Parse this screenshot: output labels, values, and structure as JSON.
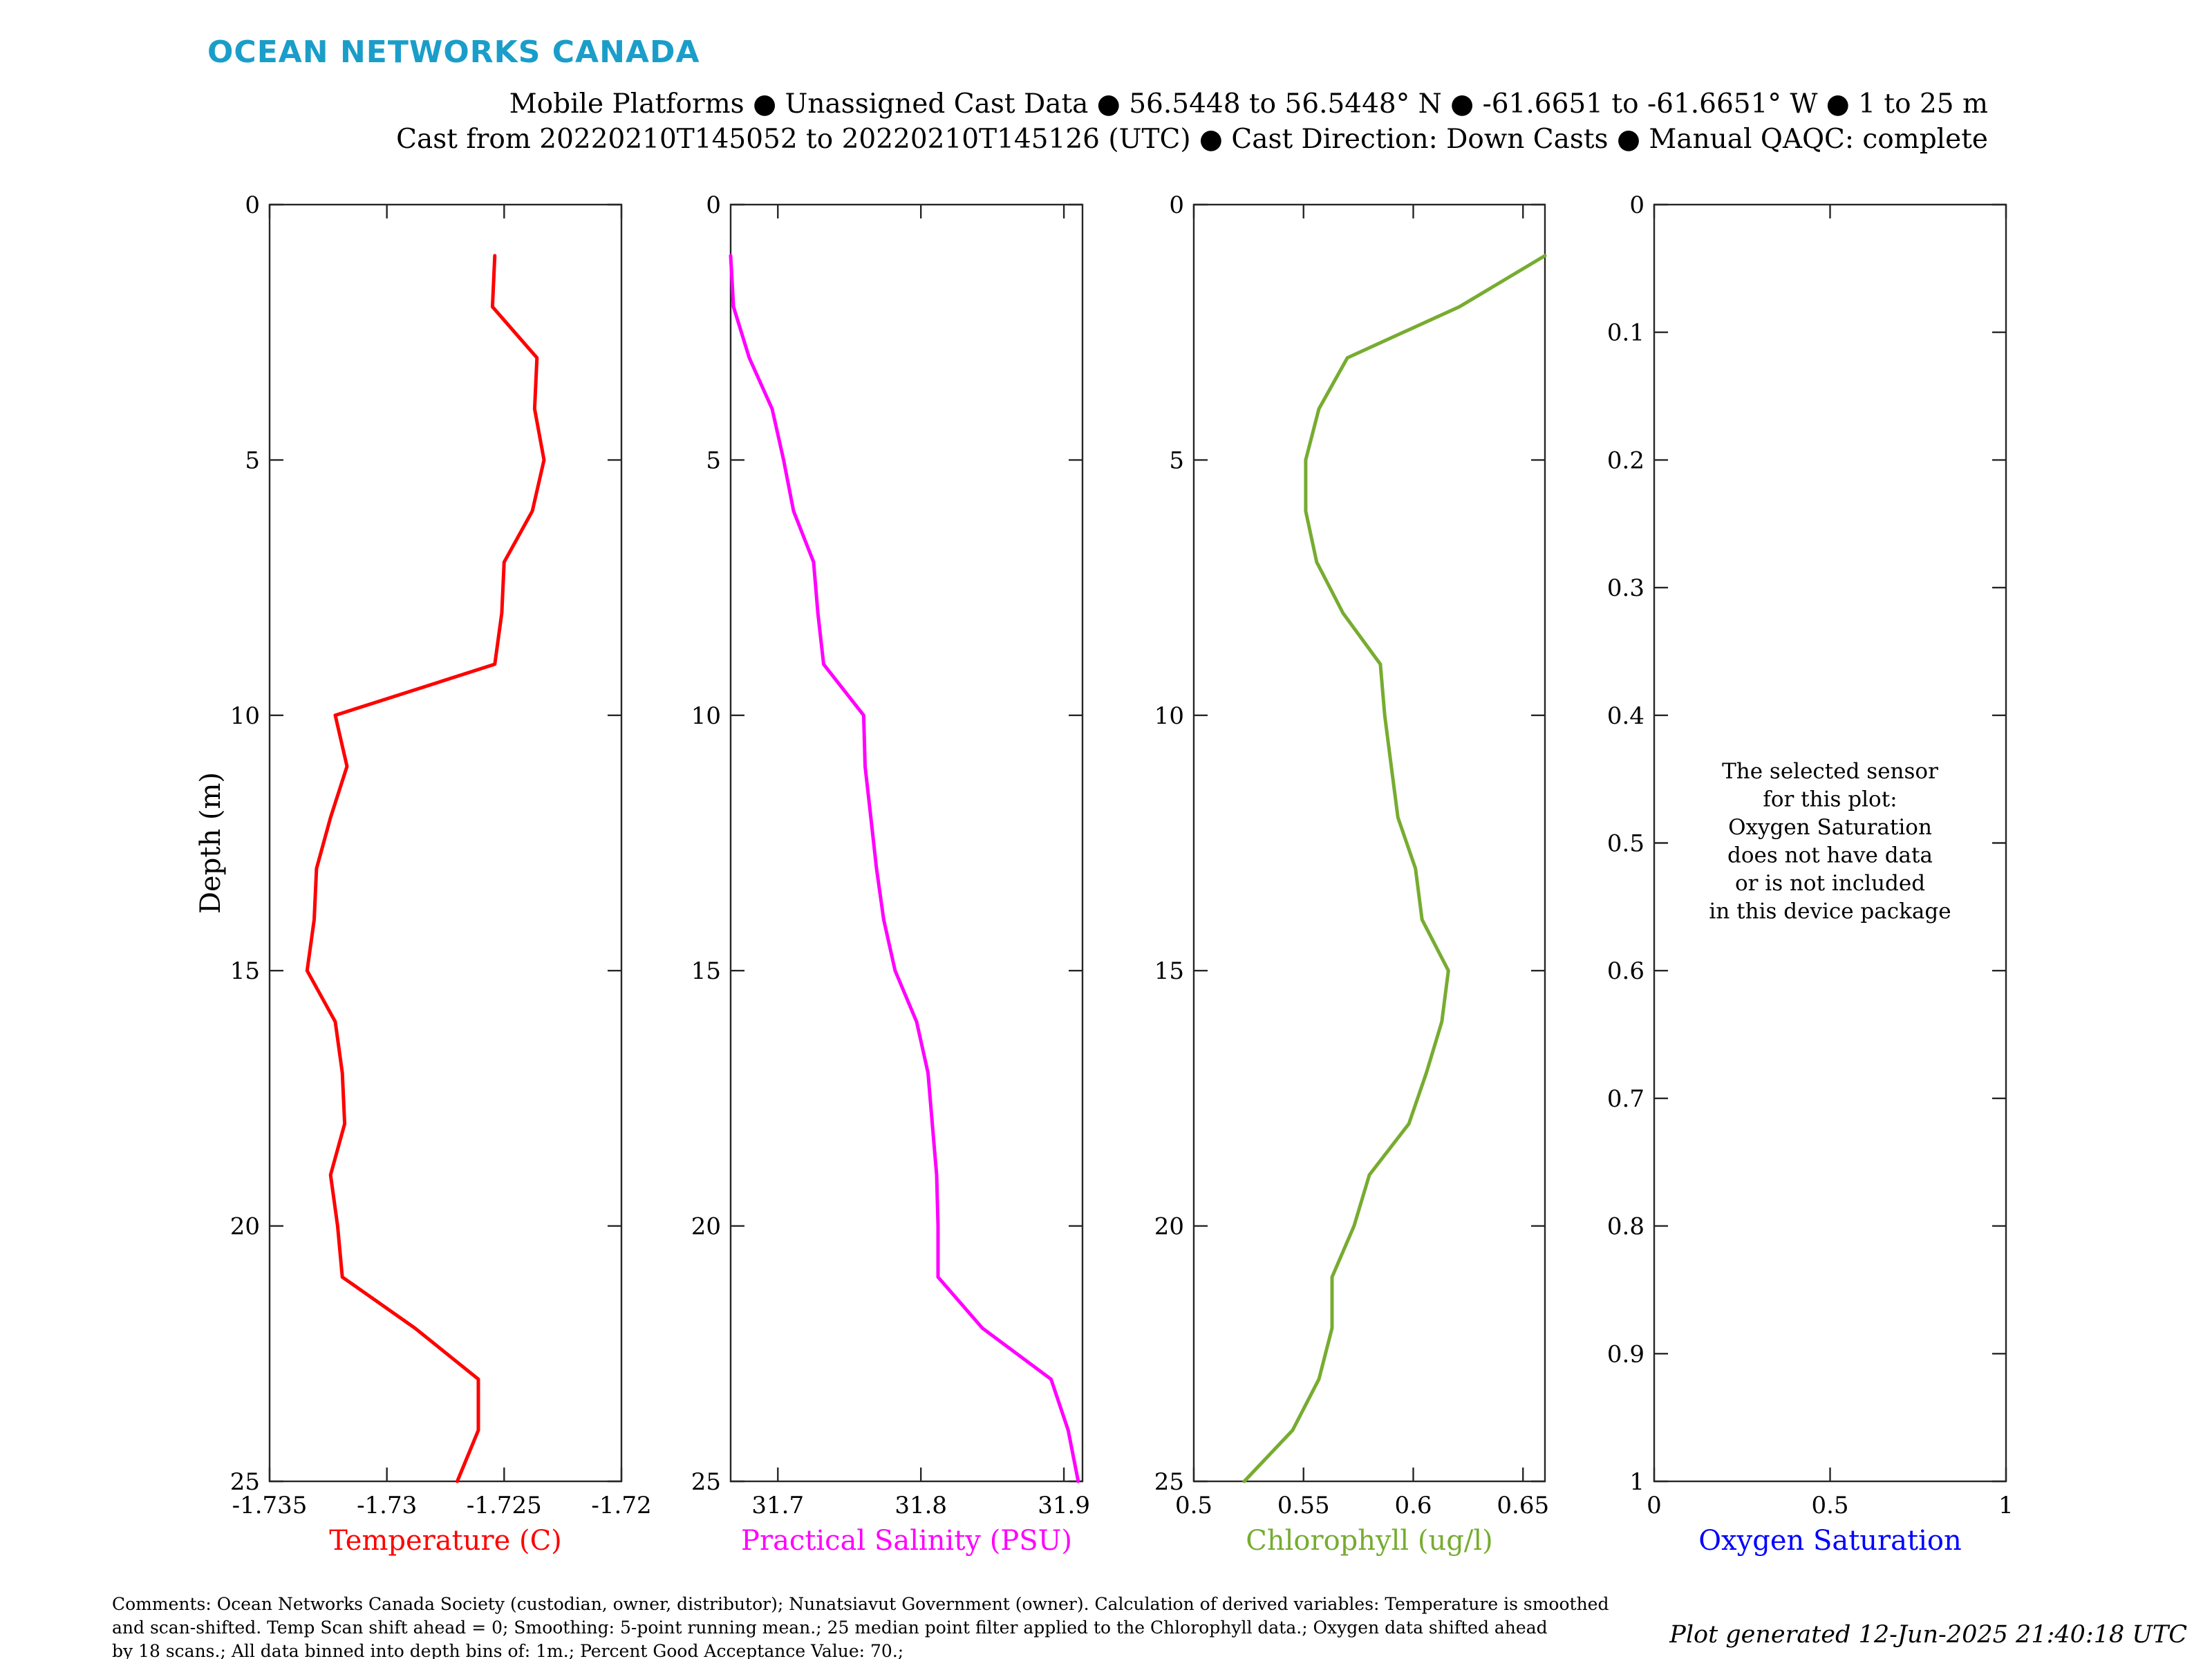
{
  "brand": {
    "name": "OCEAN NETWORKS CANADA",
    "color": "#1a9ec9"
  },
  "header": {
    "line1": "Mobile Platforms ● Unassigned Cast Data ● 56.5448 to 56.5448° N ● -61.6651 to -61.6651° W ● 1 to 25 m",
    "line2": "Cast from 20220210T145052 to 20220210T145126 (UTC) ● Cast Direction: Down Casts ● Manual QAQC: complete"
  },
  "footer": {
    "comments": [
      "Comments: Ocean Networks Canada Society (custodian, owner, distributor); Nunatsiavut Government (owner). Calculation of derived variables: Temperature is smoothed",
      "and scan-shifted. Temp Scan shift ahead = 0; Smoothing: 5-point running mean.; 25 median point filter applied to the Chlorophyll data.; Oxygen data shifted ahead",
      "by 18 scans.; All data binned into depth bins of: 1m.; Percent Good Acceptance Value: 70.;"
    ],
    "generated": "Plot generated 12-Jun-2025 21:40:18 UTC"
  },
  "chart_data": [
    {
      "type": "line",
      "ylabel": "Depth (m)",
      "xlabel": "Temperature (C)",
      "color": "#ff0000",
      "xlim": [
        -1.735,
        -1.72
      ],
      "ylim": [
        0,
        25
      ],
      "y_reversed": true,
      "xticks": [
        -1.735,
        -1.73,
        -1.725,
        -1.72
      ],
      "xtick_labels": [
        "-1.735",
        "-1.73",
        "-1.725",
        "-1.72"
      ],
      "yticks": [
        0,
        5,
        10,
        15,
        20,
        25
      ],
      "ytick_labels": [
        "0",
        "5",
        "10",
        "15",
        "20",
        "25"
      ],
      "series": [
        {
          "depth": [
            1,
            2,
            3,
            4,
            5,
            6,
            7,
            8,
            9,
            10,
            11,
            12,
            13,
            14,
            15,
            16,
            17,
            18,
            19,
            20,
            21,
            22,
            23,
            24,
            25
          ],
          "values": [
            -1.7254,
            -1.7255,
            -1.7236,
            -1.7237,
            -1.7233,
            -1.7238,
            -1.725,
            -1.7251,
            -1.7254,
            -1.7322,
            -1.7317,
            -1.7324,
            -1.733,
            -1.7331,
            -1.7334,
            -1.7322,
            -1.7319,
            -1.7318,
            -1.7324,
            -1.7321,
            -1.7319,
            -1.7288,
            -1.7261,
            -1.7261,
            -1.727
          ]
        }
      ],
      "grid": false
    },
    {
      "type": "line",
      "xlabel": "Practical Salinity (PSU)",
      "color": "#ff00ff",
      "xlim": [
        31.667,
        31.913
      ],
      "ylim": [
        0,
        25
      ],
      "y_reversed": true,
      "xticks": [
        31.7,
        31.8,
        31.9
      ],
      "xtick_labels": [
        "31.7",
        "31.8",
        "31.9"
      ],
      "yticks": [
        0,
        5,
        10,
        15,
        20,
        25
      ],
      "ytick_labels": [
        "0",
        "5",
        "10",
        "15",
        "20",
        "25"
      ],
      "series": [
        {
          "depth": [
            1,
            2,
            3,
            4,
            5,
            6,
            7,
            8,
            9,
            10,
            11,
            12,
            13,
            14,
            15,
            16,
            17,
            18,
            19,
            20,
            21,
            22,
            23,
            24,
            25
          ],
          "values": [
            31.667,
            31.669,
            31.68,
            31.696,
            31.704,
            31.711,
            31.725,
            31.728,
            31.732,
            31.76,
            31.761,
            31.765,
            31.769,
            31.774,
            31.782,
            31.797,
            31.805,
            31.808,
            31.811,
            31.812,
            31.812,
            31.843,
            31.891,
            31.903,
            31.91
          ]
        }
      ],
      "grid": false
    },
    {
      "type": "line",
      "xlabel": "Chlorophyll (ug/l)",
      "color": "#77ac30",
      "xlim": [
        0.5,
        0.66
      ],
      "ylim": [
        0,
        25
      ],
      "y_reversed": true,
      "xticks": [
        0.5,
        0.55,
        0.6,
        0.65
      ],
      "xtick_labels": [
        "0.5",
        "0.55",
        "0.6",
        "0.65"
      ],
      "yticks": [
        0,
        5,
        10,
        15,
        20,
        25
      ],
      "ytick_labels": [
        "0",
        "5",
        "10",
        "15",
        "20",
        "25"
      ],
      "series": [
        {
          "depth": [
            1,
            2,
            3,
            4,
            5,
            6,
            7,
            8,
            9,
            10,
            11,
            12,
            13,
            14,
            15,
            16,
            17,
            18,
            19,
            20,
            21,
            22,
            23,
            24,
            25
          ],
          "values": [
            0.66,
            0.621,
            0.57,
            0.557,
            0.551,
            0.551,
            0.556,
            0.568,
            0.585,
            0.587,
            0.59,
            0.593,
            0.601,
            0.604,
            0.616,
            0.613,
            0.606,
            0.598,
            0.58,
            0.573,
            0.563,
            0.563,
            0.557,
            0.545,
            0.523
          ]
        }
      ],
      "grid": false
    },
    {
      "type": "line",
      "xlabel": "Oxygen Saturation",
      "color": "#0000ff",
      "xlim": [
        0,
        1
      ],
      "ylim": [
        0,
        1
      ],
      "y_reversed": true,
      "xticks": [
        0,
        0.5,
        1
      ],
      "xtick_labels": [
        "0",
        "0.5",
        "1"
      ],
      "yticks": [
        0,
        0.1,
        0.2,
        0.3,
        0.4,
        0.5,
        0.6,
        0.7,
        0.8,
        0.9,
        1
      ],
      "ytick_labels": [
        "0",
        "0.1",
        "0.2",
        "0.3",
        "0.4",
        "0.5",
        "0.6",
        "0.7",
        "0.8",
        "0.9",
        "1"
      ],
      "series": [],
      "annotation": [
        "The selected sensor",
        "for this plot:",
        "Oxygen Saturation",
        "does not have data",
        "or is not included",
        "in this device package"
      ],
      "grid": false
    }
  ]
}
